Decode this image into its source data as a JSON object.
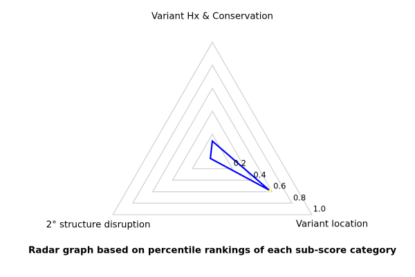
{
  "caption": "Radar graph based on percentile rankings of each sub-score category",
  "chart_data": {
    "type": "radar",
    "title": "",
    "categories": [
      "Variant Hx & Conservation",
      "2° structure disruption",
      "Variant location"
    ],
    "series": [
      {
        "name": "percentile rankings",
        "color": "#0000ff",
        "values": [
          0.14,
          0.02,
          0.57
        ]
      }
    ],
    "marker": {
      "category": "Variant location",
      "value": 0.57,
      "color": "#ffff80"
    },
    "axes_angles_deg": [
      90,
      210,
      330
    ],
    "r_ticks": [
      0.2,
      0.4,
      0.6,
      0.8,
      1.0
    ],
    "r_tick_labels": [
      "0.2",
      "0.4",
      "0.6",
      "0.8",
      "1.0"
    ],
    "r_max": 1.0,
    "grid_color": "#d2d2d2",
    "grid": "on",
    "legend": "none",
    "background_color": "#ffffff"
  }
}
